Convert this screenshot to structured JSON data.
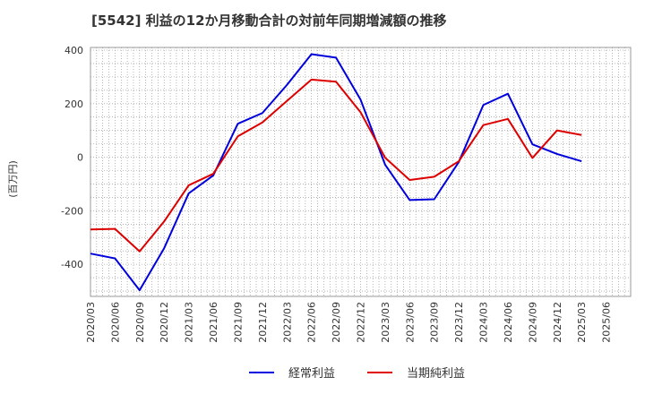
{
  "chart_data": {
    "type": "line",
    "title": "[5542]  利益の12か月移動合計の対前年同期増減額の推移",
    "ylabel": "(百万円)",
    "xlabel": "",
    "ylim": [
      -520,
      410
    ],
    "yticks": [
      400,
      200,
      0,
      -200,
      -400
    ],
    "grid": true,
    "legend_position": "bottom",
    "categories": [
      "2020/03",
      "2020/06",
      "2020/09",
      "2020/12",
      "2021/03",
      "2021/06",
      "2021/09",
      "2021/12",
      "2022/03",
      "2022/06",
      "2022/09",
      "2022/12",
      "2023/03",
      "2023/06",
      "2023/09",
      "2023/12",
      "2024/03",
      "2024/06",
      "2024/09",
      "2024/12",
      "2025/03",
      "2025/06"
    ],
    "series": [
      {
        "name": "経常利益",
        "color": "#0000dd",
        "values": [
          -360,
          -378,
          -497,
          -340,
          -135,
          -68,
          125,
          165,
          270,
          385,
          372,
          215,
          -28,
          -160,
          -157,
          -18,
          195,
          237,
          48,
          12,
          -15,
          null
        ]
      },
      {
        "name": "当期純利益",
        "color": "#dd0000",
        "values": [
          -270,
          -268,
          -352,
          -240,
          -105,
          -62,
          78,
          130,
          210,
          290,
          282,
          168,
          -2,
          -85,
          -73,
          -15,
          120,
          143,
          -3,
          100,
          83,
          null
        ]
      }
    ]
  }
}
